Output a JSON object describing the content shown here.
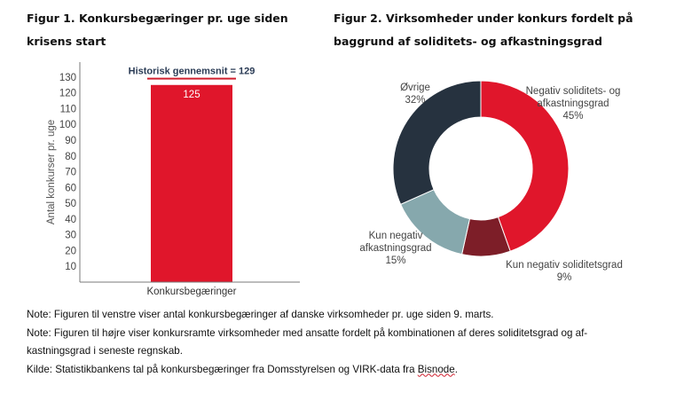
{
  "fig1": {
    "title": "Figur 1. Konkursbegæringer pr. uge siden krisens start"
  },
  "fig2": {
    "title": "Figur 2. Virksomheder under konkurs fordelt på baggrund af soliditets- og afkastningsgrad"
  },
  "chart_data": [
    {
      "type": "bar",
      "categories": [
        "Konkursbegæringer"
      ],
      "values": [
        125
      ],
      "value_labels": [
        "125"
      ],
      "ylabel": "Antal konkurser pr. uge",
      "ylim": [
        0,
        135
      ],
      "yticks": [
        10,
        20,
        30,
        40,
        50,
        60,
        70,
        80,
        90,
        100,
        110,
        120,
        130
      ],
      "reference_line": {
        "value": 129,
        "label": "Historisk gennemsnit = 129"
      },
      "colors": {
        "bar": "#e0162b",
        "reference": "#d01f2e"
      }
    },
    {
      "type": "pie",
      "donut": true,
      "slices": [
        {
          "label_lines": [
            "Negativ soliditets- og",
            "afkastningsgrad"
          ],
          "value": 45,
          "pct": "45%",
          "color": "#e0162b"
        },
        {
          "label_lines": [
            "Kun negativ soliditetsgrad"
          ],
          "value": 9,
          "pct": "9%",
          "color": "#7d1e28"
        },
        {
          "label_lines": [
            "Kun negativ",
            "afkastningsgrad"
          ],
          "value": 15,
          "pct": "15%",
          "color": "#86a8ad"
        },
        {
          "label_lines": [
            "Øvrige"
          ],
          "value": 32,
          "pct": "32%",
          "color": "#26323f"
        }
      ]
    }
  ],
  "notes": [
    "Note: Figuren til venstre viser antal konkursbegæringer af danske virksomheder pr. uge siden 9. marts.",
    "Note: Figuren til højre viser konkursramte virksomheder med ansatte fordelt på kombinationen af deres soliditetsgrad og af-",
    "kastningsgrad i seneste regnskab."
  ],
  "source": {
    "prefix": "Kilde: Statistikbankens tal på konkursbegæringer fra Domsstyrelsen og VIRK-data fra ",
    "highlight": "Bisnode",
    "suffix": "."
  }
}
